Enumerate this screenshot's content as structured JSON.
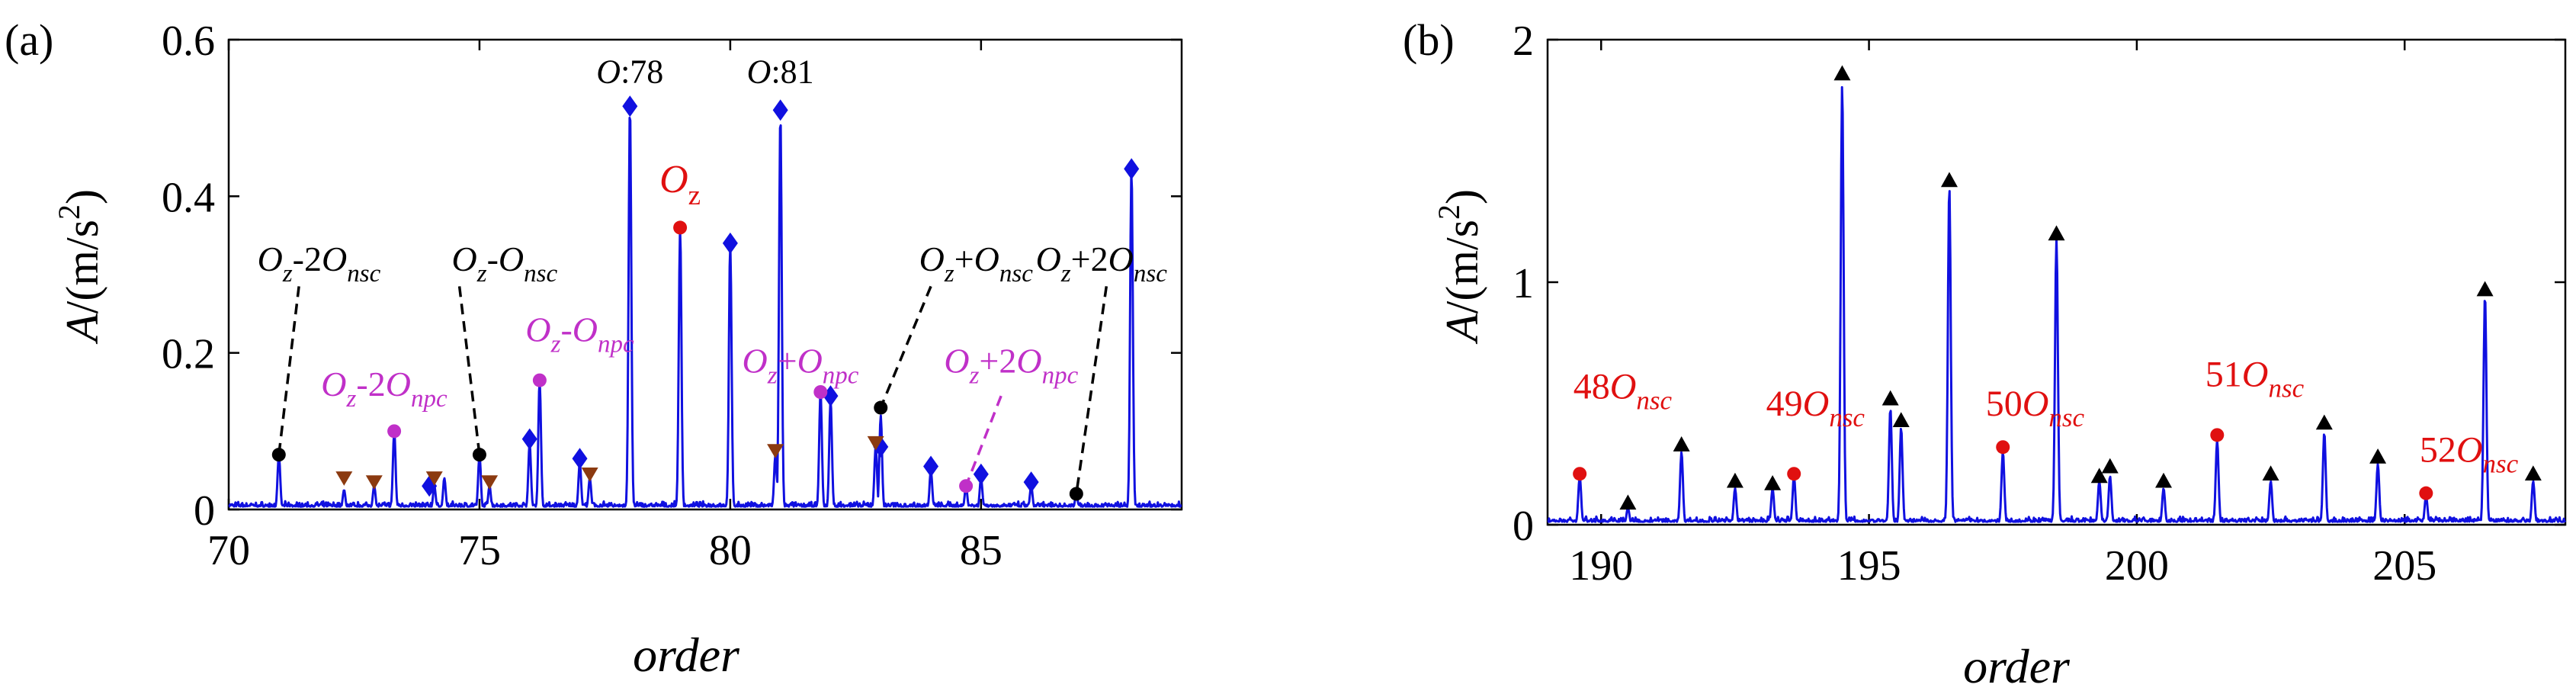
{
  "chart_data": [
    {
      "panel_label": "(a)",
      "type": "line",
      "xlabel": "order",
      "ylabel_parts": {
        "a": "A",
        "rest": "/(m/s",
        "sup": "2",
        "close": ")"
      },
      "xlim": [
        70,
        89
      ],
      "ylim": [
        0,
        0.6
      ],
      "xticks": [
        70,
        75,
        80,
        85
      ],
      "yticks": [
        0,
        0.2,
        0.4,
        0.6
      ],
      "ytick_labels": [
        "0",
        "0.2",
        "0.4",
        "0.6"
      ],
      "colors": {
        "line": "#1010e0",
        "diamond": "#1010e0",
        "magenta": "#c030c8",
        "red": "#e01010",
        "black": "#000000",
        "tri_down": "#8b3a10"
      },
      "peaks": [
        [
          71.0,
          0.07
        ],
        [
          72.3,
          0.025
        ],
        [
          72.9,
          0.03
        ],
        [
          73.3,
          0.1
        ],
        [
          74.1,
          0.03
        ],
        [
          74.3,
          0.04
        ],
        [
          75.0,
          0.07
        ],
        [
          75.2,
          0.03
        ],
        [
          76.0,
          0.085
        ],
        [
          76.2,
          0.165
        ],
        [
          77.0,
          0.06
        ],
        [
          77.2,
          0.04
        ],
        [
          78.0,
          0.515
        ],
        [
          79.0,
          0.36
        ],
        [
          80.0,
          0.34
        ],
        [
          80.9,
          0.07
        ],
        [
          81.0,
          0.505
        ],
        [
          81.8,
          0.15
        ],
        [
          82.0,
          0.14
        ],
        [
          82.9,
          0.08
        ],
        [
          83.0,
          0.12
        ],
        [
          84.0,
          0.05
        ],
        [
          84.7,
          0.03
        ],
        [
          85.0,
          0.04
        ],
        [
          86.0,
          0.03
        ],
        [
          86.9,
          0.02
        ],
        [
          88.0,
          0.435
        ]
      ],
      "markers": {
        "diamond": [
          [
            76.0,
            0.09
          ],
          [
            77.0,
            0.065
          ],
          [
            78.0,
            0.515
          ],
          [
            80.0,
            0.34
          ],
          [
            81.0,
            0.51
          ],
          [
            82.0,
            0.145
          ],
          [
            83.0,
            0.08
          ],
          [
            84.0,
            0.055
          ],
          [
            85.0,
            0.045
          ],
          [
            86.0,
            0.035
          ],
          [
            88.0,
            0.435
          ],
          [
            74.0,
            0.03
          ]
        ],
        "magenta": [
          [
            73.3,
            0.1
          ],
          [
            76.2,
            0.165
          ],
          [
            81.8,
            0.15
          ],
          [
            84.7,
            0.03
          ]
        ],
        "red": [
          [
            79.0,
            0.36
          ]
        ],
        "black": [
          [
            71.0,
            0.07
          ],
          [
            75.0,
            0.07
          ],
          [
            83.0,
            0.13
          ],
          [
            86.9,
            0.02
          ]
        ],
        "tri_down": [
          [
            72.3,
            0.04
          ],
          [
            72.9,
            0.035
          ],
          [
            74.1,
            0.04
          ],
          [
            75.2,
            0.035
          ],
          [
            77.2,
            0.045
          ],
          [
            80.9,
            0.075
          ],
          [
            82.9,
            0.085
          ]
        ]
      },
      "annotations": [
        {
          "id": "o78",
          "parts": [
            [
              "O",
              "i"
            ],
            [
              ":78",
              ""
            ]
          ],
          "x": 78.0,
          "y": 0.545,
          "color": "black",
          "size": 44,
          "anchor": "middle"
        },
        {
          "id": "o81",
          "parts": [
            [
              "O",
              "i"
            ],
            [
              ":81",
              ""
            ]
          ],
          "x": 81.0,
          "y": 0.545,
          "color": "black",
          "size": 44,
          "anchor": "middle"
        },
        {
          "id": "oz",
          "parts": [
            [
              "O",
              "i"
            ],
            [
              "z",
              "sub"
            ]
          ],
          "x": 79.0,
          "y": 0.405,
          "color": "red",
          "size": 52,
          "anchor": "middle"
        },
        {
          "id": "oz-2onsc",
          "parts": [
            [
              "O",
              "i"
            ],
            [
              "z",
              "subi"
            ],
            [
              "-2",
              ""
            ],
            [
              "O",
              "i"
            ],
            [
              "nsc",
              "subi"
            ]
          ],
          "x": 71.8,
          "y": 0.305,
          "color": "black",
          "size": 46,
          "anchor": "middle"
        },
        {
          "id": "oz-onsc",
          "parts": [
            [
              "O",
              "i"
            ],
            [
              "z",
              "subi"
            ],
            [
              "-",
              ""
            ],
            [
              "O",
              "i"
            ],
            [
              "nsc",
              "subi"
            ]
          ],
          "x": 75.5,
          "y": 0.305,
          "color": "black",
          "size": 46,
          "anchor": "middle"
        },
        {
          "id": "oz+onsc",
          "parts": [
            [
              "O",
              "i"
            ],
            [
              "z",
              "subi"
            ],
            [
              "+",
              ""
            ],
            [
              "O",
              "i"
            ],
            [
              "nsc",
              "subi"
            ]
          ],
          "x": 84.9,
          "y": 0.305,
          "color": "black",
          "size": 46,
          "anchor": "middle"
        },
        {
          "id": "oz+2onsc",
          "parts": [
            [
              "O",
              "i"
            ],
            [
              "z",
              "subi"
            ],
            [
              "+2",
              ""
            ],
            [
              "O",
              "i"
            ],
            [
              "nsc",
              "subi"
            ]
          ],
          "x": 87.4,
          "y": 0.305,
          "color": "black",
          "size": 46,
          "anchor": "middle"
        },
        {
          "id": "oz-2onpc",
          "parts": [
            [
              "O",
              "i"
            ],
            [
              "z",
              "subi"
            ],
            [
              "-2",
              ""
            ],
            [
              "O",
              "i"
            ],
            [
              "npc",
              "subi"
            ]
          ],
          "x": 73.1,
          "y": 0.145,
          "color": "magenta",
          "size": 46,
          "anchor": "middle"
        },
        {
          "id": "oz-onpc",
          "parts": [
            [
              "O",
              "i"
            ],
            [
              "z",
              "subi"
            ],
            [
              "-",
              ""
            ],
            [
              "O",
              "i"
            ],
            [
              "npc",
              "subi"
            ]
          ],
          "x": 77.0,
          "y": 0.215,
          "color": "magenta",
          "size": 46,
          "anchor": "middle"
        },
        {
          "id": "oz+onpc",
          "parts": [
            [
              "O",
              "i"
            ],
            [
              "z",
              "subi"
            ],
            [
              "+",
              ""
            ],
            [
              "O",
              "i"
            ],
            [
              "npc",
              "subi"
            ]
          ],
          "x": 81.4,
          "y": 0.175,
          "color": "magenta",
          "size": 46,
          "anchor": "middle"
        },
        {
          "id": "oz+2onpc",
          "parts": [
            [
              "O",
              "i"
            ],
            [
              "z",
              "subi"
            ],
            [
              "+2",
              ""
            ],
            [
              "O",
              "i"
            ],
            [
              "npc",
              "subi"
            ]
          ],
          "x": 85.6,
          "y": 0.175,
          "color": "magenta",
          "size": 46,
          "anchor": "middle"
        }
      ],
      "leaders": [
        {
          "from": [
            71.4,
            0.285
          ],
          "to": [
            71.0,
            0.07
          ],
          "color": "black"
        },
        {
          "from": [
            74.6,
            0.285
          ],
          "to": [
            75.0,
            0.07
          ],
          "color": "black"
        },
        {
          "from": [
            84.0,
            0.285
          ],
          "to": [
            83.0,
            0.13
          ],
          "color": "black"
        },
        {
          "from": [
            87.5,
            0.285
          ],
          "to": [
            86.9,
            0.02
          ],
          "color": "black"
        },
        {
          "from": [
            85.4,
            0.145
          ],
          "to": [
            84.7,
            0.03
          ],
          "color": "magenta"
        }
      ]
    },
    {
      "panel_label": "(b)",
      "type": "line",
      "xlabel": "order",
      "ylabel_parts": {
        "a": "A",
        "rest": "/(m/s",
        "sup": "2",
        "close": ")"
      },
      "xlim": [
        189,
        208
      ],
      "ylim": [
        0,
        2
      ],
      "xticks": [
        190,
        195,
        200,
        205
      ],
      "yticks": [
        0,
        1,
        2
      ],
      "ytick_labels": [
        "0",
        "1",
        "2"
      ],
      "colors": {
        "line": "#1010e0",
        "red": "#e01010",
        "black": "#000000"
      },
      "peaks": [
        [
          189.6,
          0.2
        ],
        [
          190.5,
          0.07
        ],
        [
          191.5,
          0.3
        ],
        [
          192.5,
          0.15
        ],
        [
          193.2,
          0.15
        ],
        [
          193.6,
          0.2
        ],
        [
          194.5,
          1.82
        ],
        [
          195.4,
          0.48
        ],
        [
          195.6,
          0.4
        ],
        [
          196.5,
          1.4
        ],
        [
          197.5,
          0.3
        ],
        [
          198.5,
          1.18
        ],
        [
          199.3,
          0.18
        ],
        [
          199.5,
          0.2
        ],
        [
          200.5,
          0.15
        ],
        [
          201.5,
          0.35
        ],
        [
          202.5,
          0.18
        ],
        [
          203.5,
          0.38
        ],
        [
          204.5,
          0.25
        ],
        [
          205.4,
          0.12
        ],
        [
          206.5,
          0.95
        ],
        [
          207.4,
          0.18
        ]
      ],
      "markers": {
        "tri_up": [
          [
            190.5,
            0.09
          ],
          [
            191.5,
            0.33
          ],
          [
            192.5,
            0.18
          ],
          [
            193.2,
            0.17
          ],
          [
            194.5,
            1.86
          ],
          [
            195.4,
            0.52
          ],
          [
            195.6,
            0.43
          ],
          [
            196.5,
            1.42
          ],
          [
            198.5,
            1.2
          ],
          [
            199.3,
            0.2
          ],
          [
            199.5,
            0.24
          ],
          [
            200.5,
            0.18
          ],
          [
            202.5,
            0.21
          ],
          [
            203.5,
            0.42
          ],
          [
            204.5,
            0.28
          ],
          [
            206.5,
            0.97
          ],
          [
            207.4,
            0.21
          ]
        ],
        "red": [
          [
            189.6,
            0.21
          ],
          [
            193.6,
            0.21
          ],
          [
            197.5,
            0.32
          ],
          [
            201.5,
            0.37
          ],
          [
            205.4,
            0.13
          ]
        ]
      },
      "annotations": [
        {
          "id": "48onsc",
          "parts": [
            [
              "48",
              ""
            ],
            [
              "O",
              "i"
            ],
            [
              "nsc",
              "subi"
            ]
          ],
          "x": 190.4,
          "y": 0.52,
          "color": "red",
          "size": 48,
          "anchor": "middle"
        },
        {
          "id": "49onsc",
          "parts": [
            [
              "49",
              ""
            ],
            [
              "O",
              "i"
            ],
            [
              "nsc",
              "subi"
            ]
          ],
          "x": 194.0,
          "y": 0.45,
          "color": "red",
          "size": 48,
          "anchor": "middle"
        },
        {
          "id": "50onsc",
          "parts": [
            [
              "50",
              ""
            ],
            [
              "O",
              "i"
            ],
            [
              "nsc",
              "subi"
            ]
          ],
          "x": 198.1,
          "y": 0.45,
          "color": "red",
          "size": 48,
          "anchor": "middle"
        },
        {
          "id": "51onsc",
          "parts": [
            [
              "51",
              ""
            ],
            [
              "O",
              "i"
            ],
            [
              "nsc",
              "subi"
            ]
          ],
          "x": 202.2,
          "y": 0.57,
          "color": "red",
          "size": 48,
          "anchor": "middle"
        },
        {
          "id": "52onsc",
          "parts": [
            [
              "52",
              ""
            ],
            [
              "O",
              "i"
            ],
            [
              "nsc",
              "subi"
            ]
          ],
          "x": 206.2,
          "y": 0.26,
          "color": "red",
          "size": 48,
          "anchor": "middle"
        }
      ]
    }
  ]
}
